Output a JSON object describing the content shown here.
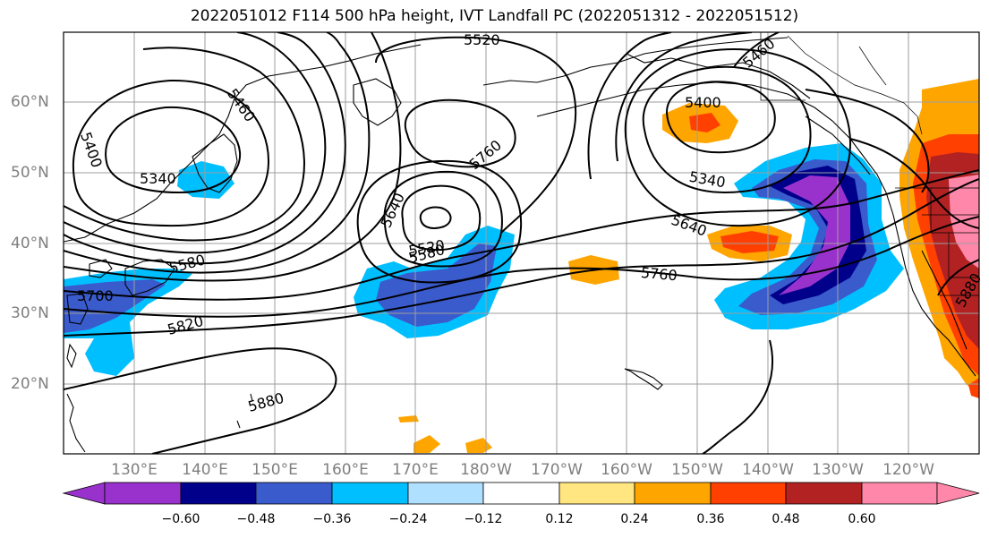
{
  "title": "2022051012 F114 500 hPa height, IVT Landfall PC (2022051312 - 2022051512)",
  "lat_labels": [
    "60°N",
    "50°N",
    "40°N",
    "30°N",
    "20°N"
  ],
  "lon_labels": [
    "130°E",
    "140°E",
    "150°E",
    "160°E",
    "170°E",
    "180°W",
    "170°W",
    "160°W",
    "150°W",
    "140°W",
    "130°W",
    "120°W"
  ],
  "contour_labels": [
    "5520",
    "5460",
    "5460",
    "5400",
    "5400",
    "5340",
    "5340",
    "5760",
    "5640",
    "5520",
    "5580",
    "5580",
    "5640",
    "5760",
    "5700",
    "5820",
    "5880",
    "5880"
  ],
  "colorbar": {
    "ticks": [
      "−0.60",
      "−0.48",
      "−0.36",
      "−0.24",
      "−0.12",
      "0.12",
      "0.24",
      "0.36",
      "0.48",
      "0.60"
    ],
    "colors": [
      "#9932cc",
      "#00008b",
      "#3a5bcc",
      "#00bfff",
      "#b0e0ff",
      "#ffffff",
      "#ffe680",
      "#ffa500",
      "#ff4000",
      "#b22222",
      "#ff88aa",
      "#ff88aa"
    ]
  }
}
